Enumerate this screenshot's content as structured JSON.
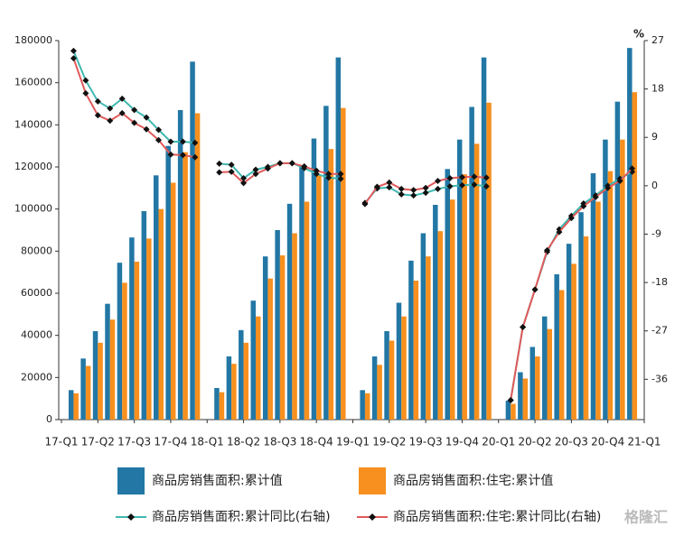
{
  "chart_data": {
    "type": "bar-line",
    "y2_unit": "%",
    "watermark": "格隆汇",
    "categories": [
      "17-Q1",
      null,
      null,
      "17-Q2",
      null,
      null,
      "17-Q3",
      null,
      null,
      "17-Q4",
      null,
      null,
      "18-Q1",
      null,
      null,
      "18-Q2",
      null,
      null,
      "18-Q3",
      null,
      null,
      "18-Q4",
      null,
      null,
      "19-Q1",
      null,
      null,
      "19-Q2",
      null,
      null,
      "19-Q3",
      null,
      null,
      "19-Q4",
      null,
      null,
      "20-Q1",
      null,
      null,
      "20-Q2",
      null,
      null,
      "20-Q3",
      null,
      null,
      "20-Q4",
      null,
      null,
      "21-Q1"
    ],
    "series": [
      {
        "name": "商品房销售面积:累计值",
        "kind": "bar",
        "color": "#2277a4",
        "values": [
          null,
          14000,
          29000,
          42000,
          55000,
          74500,
          86500,
          99000,
          116000,
          130000,
          147000,
          170000,
          null,
          15000,
          30000,
          42500,
          56500,
          77500,
          90000,
          102500,
          120000,
          133500,
          149000,
          172000,
          null,
          14000,
          30000,
          42000,
          55500,
          75500,
          88500,
          102000,
          119000,
          133000,
          148500,
          172000,
          null,
          9000,
          22500,
          34500,
          49000,
          69000,
          83500,
          98500,
          117000,
          133000,
          151000,
          176500,
          null
        ]
      },
      {
        "name": "商品房销售面积:住宅:累计值",
        "kind": "bar",
        "color": "#f7901e",
        "values": [
          null,
          12500,
          25500,
          36500,
          47500,
          65000,
          75000,
          86000,
          100000,
          112500,
          127000,
          145500,
          null,
          13000,
          26500,
          36500,
          49000,
          67000,
          78000,
          88500,
          103500,
          116000,
          128500,
          148000,
          null,
          12500,
          26000,
          37500,
          49000,
          66000,
          77500,
          89500,
          104500,
          116500,
          131000,
          150500,
          null,
          7500,
          19500,
          30000,
          43000,
          61500,
          74000,
          87000,
          103500,
          118000,
          133000,
          155500,
          null
        ]
      },
      {
        "name": "商品房销售面积:累计同比(右轴)",
        "kind": "line",
        "axis": "y2",
        "color": "#3fb8b0",
        "values": [
          null,
          25.1,
          19.6,
          15.7,
          14.4,
          16.2,
          14.1,
          12.7,
          10.4,
          8.2,
          8.2,
          8.0,
          null,
          4.1,
          3.9,
          1.4,
          3.0,
          3.5,
          4.2,
          4.2,
          3.3,
          2.2,
          1.5,
          1.3,
          null,
          -3.2,
          -0.5,
          -0.3,
          -1.6,
          -1.8,
          -1.3,
          -0.6,
          -0.1,
          0.1,
          0.2,
          -0.1,
          null,
          -39.9,
          -26.3,
          -19.3,
          -12.3,
          -8.1,
          -5.6,
          -3.3,
          -1.8,
          0.0,
          1.3,
          2.6,
          null
        ]
      },
      {
        "name": "商品房销售面积:住宅:累计同比(右轴)",
        "kind": "line",
        "axis": "y2",
        "color": "#e05a5a",
        "values": [
          null,
          23.7,
          17.2,
          13.1,
          12.1,
          13.5,
          11.7,
          10.5,
          8.5,
          5.8,
          5.7,
          5.3,
          null,
          2.5,
          2.6,
          0.5,
          2.2,
          3.2,
          4.2,
          4.2,
          3.6,
          2.8,
          2.2,
          2.2,
          null,
          -3.4,
          -0.2,
          0.6,
          -0.6,
          -0.8,
          -0.4,
          0.9,
          1.4,
          1.6,
          1.7,
          1.5,
          null,
          -39.9,
          -26.3,
          -19.3,
          -12.0,
          -8.6,
          -6.0,
          -3.8,
          -2.1,
          -0.4,
          0.9,
          3.2,
          null
        ]
      }
    ],
    "ylim": [
      0,
      180000
    ],
    "yticks": [
      0,
      20000,
      40000,
      60000,
      80000,
      100000,
      120000,
      140000,
      160000,
      180000
    ],
    "y2lim": [
      -43.5,
      27
    ],
    "y2ticks": [
      27,
      18,
      9,
      0,
      -9,
      -18,
      -27,
      -36
    ],
    "legend": "bottom"
  }
}
